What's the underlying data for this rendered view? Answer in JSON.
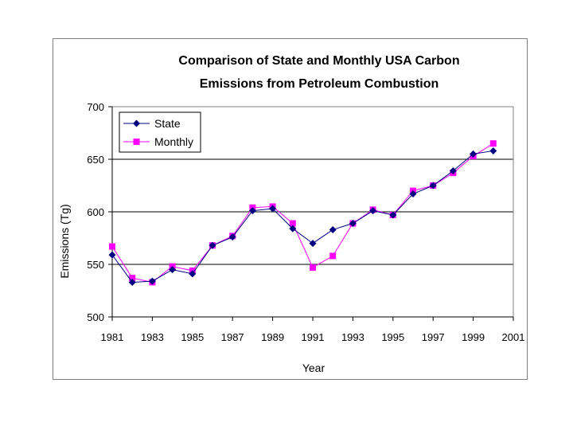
{
  "chart_data": {
    "type": "line",
    "title": [
      "Comparison of State and Monthly USA Carbon",
      "Emissions from Petroleum Combustion"
    ],
    "xlabel": "Year",
    "ylabel": "Emissions (Tg)",
    "xlim": [
      1981,
      2001
    ],
    "ylim": [
      500,
      700
    ],
    "x_ticks": [
      "1981",
      "1983",
      "1985",
      "1987",
      "1989",
      "1991",
      "1993",
      "1995",
      "1997",
      "1999",
      "2001"
    ],
    "y_ticks": [
      "500",
      "550",
      "600",
      "650",
      "700"
    ],
    "grid": "horizontal",
    "legend_position": "top-left",
    "x": [
      1981,
      1982,
      1983,
      1984,
      1985,
      1986,
      1987,
      1988,
      1989,
      1990,
      1991,
      1992,
      1993,
      1994,
      1995,
      1996,
      1997,
      1998,
      1999,
      2000
    ],
    "series": [
      {
        "name": "State",
        "color": "#000080",
        "marker": "diamond",
        "values": [
          559,
          533,
          534,
          545,
          541,
          568,
          576,
          601,
          603,
          584,
          570,
          583,
          589,
          601,
          597,
          617,
          625,
          639,
          655,
          658
        ]
      },
      {
        "name": "Monthly",
        "color": "#ff00ff",
        "marker": "square",
        "values": [
          567,
          537,
          533,
          548,
          544,
          568,
          577,
          604,
          605,
          589,
          547,
          558,
          589,
          602,
          597,
          620,
          625,
          637,
          653,
          665
        ]
      }
    ]
  }
}
